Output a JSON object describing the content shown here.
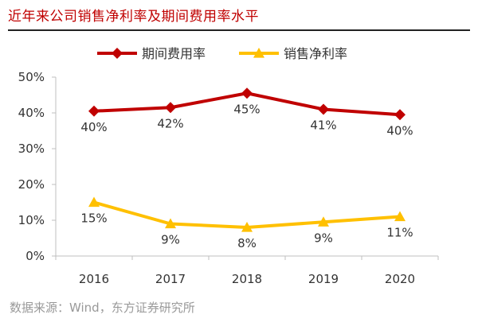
{
  "title": "近年来公司销售净利率及期间费用率水平",
  "source": "数据来源：Wind，东方证券研究所",
  "chart_data": {
    "type": "line",
    "categories": [
      "2016",
      "2017",
      "2018",
      "2019",
      "2020"
    ],
    "ylim": [
      0,
      50
    ],
    "yticks": [
      "0%",
      "10%",
      "20%",
      "30%",
      "40%",
      "50%"
    ],
    "ytick_values": [
      0,
      10,
      20,
      30,
      40,
      50
    ],
    "legend_position": "top",
    "grid": false,
    "series": [
      {
        "name": "期间费用率",
        "color": "#c00000",
        "marker": "diamond",
        "values": [
          40.5,
          41.5,
          45.5,
          41,
          39.5
        ],
        "labels": [
          "40%",
          "42%",
          "45%",
          "41%",
          "40%"
        ]
      },
      {
        "name": "销售净利率",
        "color": "#ffc000",
        "marker": "triangle",
        "values": [
          15,
          9,
          8,
          9.5,
          11
        ],
        "labels": [
          "15%",
          "9%",
          "8%",
          "9%",
          "11%"
        ]
      }
    ]
  }
}
